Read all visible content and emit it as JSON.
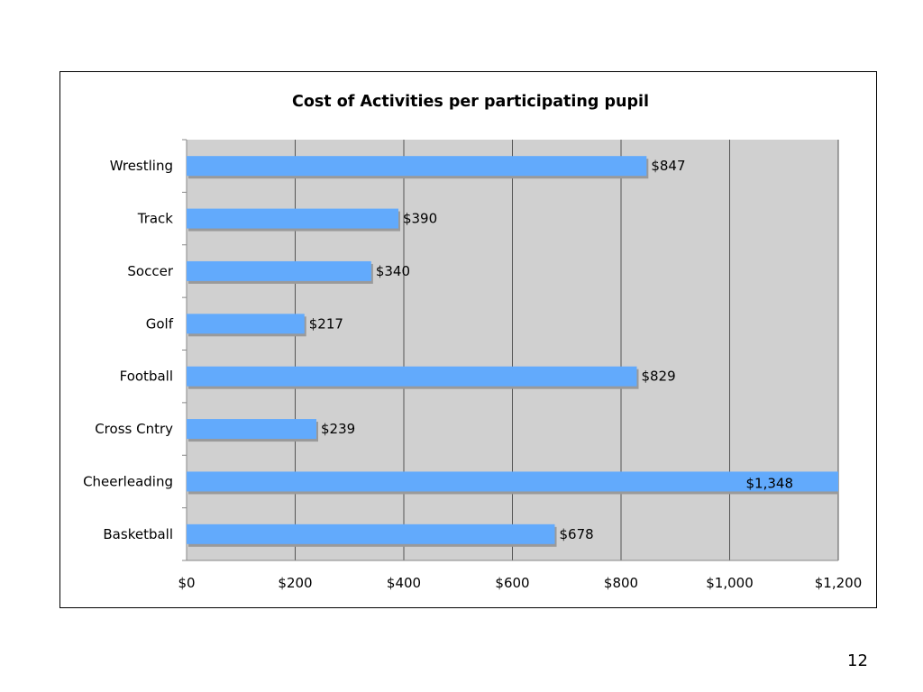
{
  "page": {
    "number": "12"
  },
  "colors": {
    "plot_bg": "#d0d0d0",
    "bar": "#62aafc",
    "bar_shadow": "#9a9a9a",
    "grid": "#555555"
  },
  "chart_data": {
    "type": "bar",
    "orientation": "horizontal",
    "title": "Cost of Activities per participating pupil",
    "xlabel": "",
    "ylabel": "",
    "categories": [
      "Wrestling",
      "Track",
      "Soccer",
      "Golf",
      "Football",
      "Cross Cntry",
      "Cheerleading",
      "Basketball"
    ],
    "values": [
      847,
      390,
      340,
      217,
      829,
      239,
      1348,
      678
    ],
    "value_labels": [
      "$847",
      "$390",
      "$340",
      "$217",
      "$829",
      "$239",
      "$1,348",
      "$678"
    ],
    "xlim": [
      0,
      1200
    ],
    "x_ticks": [
      0,
      200,
      400,
      600,
      800,
      1000,
      1200
    ],
    "x_tick_labels": [
      "$0",
      "$200",
      "$400",
      "$600",
      "$800",
      "$1,000",
      "$1,200"
    ],
    "grid": true,
    "legend": "none"
  }
}
